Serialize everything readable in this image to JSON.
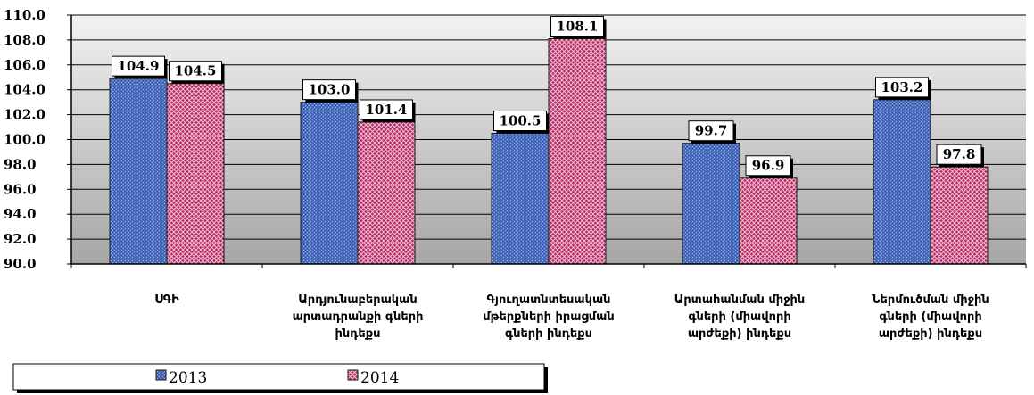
{
  "chart_data": {
    "type": "bar",
    "categories": [
      [
        "ՍԳԻ"
      ],
      [
        "Արդյունաբերական",
        "արտադրանքի գների",
        "ինդեքս"
      ],
      [
        "Գյուղատնտեսական",
        "մթերքների իրացման",
        "գների ինդեքս"
      ],
      [
        "Արտահանման միջին",
        "գների (միավորի",
        "արժեքի) ինդեքս"
      ],
      [
        "Ներմուծման միջին",
        "գների (միավորի",
        "արժեքի) ինդեքս"
      ]
    ],
    "series": [
      {
        "name": "2013",
        "values": [
          104.9,
          103.0,
          100.5,
          99.7,
          103.2
        ],
        "labels": [
          "104.9",
          "103.0",
          "100.5",
          "99.7",
          "103.2"
        ]
      },
      {
        "name": "2014",
        "values": [
          104.5,
          101.4,
          108.1,
          96.9,
          97.8
        ],
        "labels": [
          "104.5",
          "101.4",
          "108.1",
          "96.9",
          "97.8"
        ]
      }
    ],
    "yticks": [
      "90.0",
      "92.0",
      "94.0",
      "96.0",
      "98.0",
      "100.0",
      "102.0",
      "104.0",
      "106.0",
      "108.0",
      "110.0"
    ],
    "ylim": [
      90,
      110
    ],
    "grid": true,
    "legend_position": "bottom-left",
    "colors": {
      "2013": "#4a6fc0",
      "2014": "#c0306a",
      "plot_bg_top": "#f2f2f2",
      "plot_bg_bottom": "#a6a6a6"
    }
  }
}
